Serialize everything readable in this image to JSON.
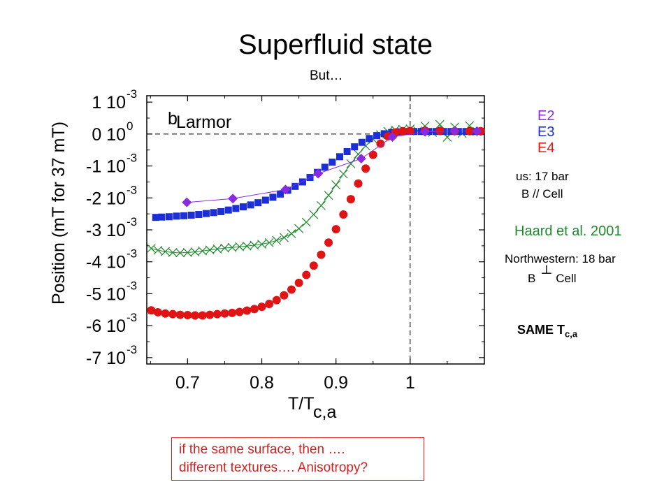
{
  "title": "Superfluid state",
  "subtitle": "But…",
  "chart_data": {
    "type": "scatter",
    "xlabel": "T/T",
    "xlabel_sub": "c,a",
    "ylabel": "Position (mT for 37 mT)",
    "xlim": [
      0.645,
      1.1
    ],
    "ylim": [
      -0.0072,
      0.0012
    ],
    "xticks": [
      {
        "v": 0.7,
        "label": "0.7"
      },
      {
        "v": 0.8,
        "label": "0.8"
      },
      {
        "v": 0.9,
        "label": "0.9"
      },
      {
        "v": 1.0,
        "label": "1"
      }
    ],
    "yticks": [
      {
        "v": 0.001,
        "base": "1 10",
        "exp": "-3"
      },
      {
        "v": 0.0,
        "base": "0 10",
        "exp": "0"
      },
      {
        "v": -0.001,
        "base": "-1 10",
        "exp": "-3"
      },
      {
        "v": -0.002,
        "base": "-2 10",
        "exp": "-3"
      },
      {
        "v": -0.003,
        "base": "-3 10",
        "exp": "-3"
      },
      {
        "v": -0.004,
        "base": "-4 10",
        "exp": "-3"
      },
      {
        "v": -0.005,
        "base": "-5 10",
        "exp": "-3"
      },
      {
        "v": -0.006,
        "base": "-6 10",
        "exp": "-3"
      },
      {
        "v": -0.007,
        "base": "-7 10",
        "exp": "-3"
      }
    ],
    "reference_lines": {
      "y": 0.0,
      "x": 1.0
    },
    "annotation": {
      "text": "b",
      "sub": "Larmor"
    },
    "series": [
      {
        "name": "E2",
        "marker": "diamond",
        "color": "#8a2be2",
        "with_line": true,
        "points": [
          [
            0.699,
            -0.00214
          ],
          [
            0.761,
            -0.00202
          ],
          [
            0.832,
            -0.00174
          ],
          [
            0.876,
            -0.00124
          ],
          [
            0.934,
            -0.00077
          ],
          [
            0.976,
            -9e-05
          ],
          [
            1.02,
            7e-05
          ],
          [
            1.06,
            0.0001
          ],
          [
            1.09,
            9e-05
          ]
        ]
      },
      {
        "name": "E3",
        "marker": "square",
        "color": "#1c2fd6",
        "points": [
          [
            0.657,
            -0.00261
          ],
          [
            0.665,
            -0.0026
          ],
          [
            0.675,
            -0.00259
          ],
          [
            0.685,
            -0.00257
          ],
          [
            0.695,
            -0.00256
          ],
          [
            0.705,
            -0.00254
          ],
          [
            0.715,
            -0.00252
          ],
          [
            0.725,
            -0.00249
          ],
          [
            0.735,
            -0.00246
          ],
          [
            0.745,
            -0.00243
          ],
          [
            0.755,
            -0.00238
          ],
          [
            0.765,
            -0.00233
          ],
          [
            0.775,
            -0.00228
          ],
          [
            0.785,
            -0.00222
          ],
          [
            0.795,
            -0.00215
          ],
          [
            0.805,
            -0.00207
          ],
          [
            0.815,
            -0.00198
          ],
          [
            0.825,
            -0.00188
          ],
          [
            0.835,
            -0.00176
          ],
          [
            0.845,
            -0.00164
          ],
          [
            0.855,
            -0.0015
          ],
          [
            0.865,
            -0.00136
          ],
          [
            0.875,
            -0.0012
          ],
          [
            0.885,
            -0.00104
          ],
          [
            0.895,
            -0.00088
          ],
          [
            0.905,
            -0.00071
          ],
          [
            0.915,
            -0.00055
          ],
          [
            0.925,
            -0.0004
          ],
          [
            0.935,
            -0.00026
          ],
          [
            0.945,
            -0.00014
          ],
          [
            0.955,
            -5e-05
          ],
          [
            0.965,
            1e-05
          ],
          [
            0.975,
            5e-05
          ],
          [
            0.985,
            7e-05
          ],
          [
            0.995,
            8e-05
          ],
          [
            1.005,
            8e-05
          ],
          [
            1.015,
            8e-05
          ],
          [
            1.025,
            8e-05
          ],
          [
            1.035,
            8e-05
          ],
          [
            1.045,
            8e-05
          ],
          [
            1.055,
            8e-05
          ],
          [
            1.065,
            8e-05
          ],
          [
            1.075,
            8e-05
          ],
          [
            1.085,
            8e-05
          ],
          [
            1.095,
            8e-05
          ]
        ]
      },
      {
        "name": "E4",
        "marker": "circle",
        "color": "#e01414",
        "points": [
          [
            0.651,
            -0.00552
          ],
          [
            0.66,
            -0.00558
          ],
          [
            0.67,
            -0.00562
          ],
          [
            0.68,
            -0.00564
          ],
          [
            0.69,
            -0.00566
          ],
          [
            0.7,
            -0.00567
          ],
          [
            0.71,
            -0.00568
          ],
          [
            0.72,
            -0.00568
          ],
          [
            0.73,
            -0.00566
          ],
          [
            0.74,
            -0.00564
          ],
          [
            0.75,
            -0.00562
          ],
          [
            0.76,
            -0.0056
          ],
          [
            0.77,
            -0.00557
          ],
          [
            0.78,
            -0.00553
          ],
          [
            0.79,
            -0.00548
          ],
          [
            0.8,
            -0.00541
          ],
          [
            0.81,
            -0.00532
          ],
          [
            0.82,
            -0.0052
          ],
          [
            0.83,
            -0.00505
          ],
          [
            0.84,
            -0.00487
          ],
          [
            0.85,
            -0.00466
          ],
          [
            0.86,
            -0.00441
          ],
          [
            0.87,
            -0.00412
          ],
          [
            0.88,
            -0.00378
          ],
          [
            0.89,
            -0.0034
          ],
          [
            0.9,
            -0.00298
          ],
          [
            0.91,
            -0.00252
          ],
          [
            0.92,
            -0.00204
          ],
          [
            0.93,
            -0.00155
          ],
          [
            0.94,
            -0.00108
          ],
          [
            0.95,
            -0.00065
          ],
          [
            0.96,
            -0.0003
          ],
          [
            0.97,
            -7e-05
          ],
          [
            0.98,
            5e-05
          ],
          [
            0.99,
            9e-05
          ],
          [
            1.0,
            0.0001
          ],
          [
            1.02,
            0.00011
          ],
          [
            1.04,
            0.0001
          ],
          [
            1.06,
            9e-05
          ],
          [
            1.08,
            9e-05
          ],
          [
            1.095,
            9e-05
          ]
        ]
      },
      {
        "name": "",
        "marker": "x",
        "color": "#1e8a2c",
        "with_line": true,
        "points": [
          [
            0.651,
            -0.00358
          ],
          [
            0.66,
            -0.00364
          ],
          [
            0.67,
            -0.00368
          ],
          [
            0.68,
            -0.00371
          ],
          [
            0.69,
            -0.00372
          ],
          [
            0.7,
            -0.00371
          ],
          [
            0.71,
            -0.00369
          ],
          [
            0.72,
            -0.00366
          ],
          [
            0.73,
            -0.00363
          ],
          [
            0.74,
            -0.0036
          ],
          [
            0.75,
            -0.00357
          ],
          [
            0.76,
            -0.00355
          ],
          [
            0.77,
            -0.00353
          ],
          [
            0.78,
            -0.00351
          ],
          [
            0.79,
            -0.00348
          ],
          [
            0.8,
            -0.00345
          ],
          [
            0.81,
            -0.0034
          ],
          [
            0.82,
            -0.00333
          ],
          [
            0.83,
            -0.00324
          ],
          [
            0.84,
            -0.00312
          ],
          [
            0.85,
            -0.00296
          ],
          [
            0.86,
            -0.00276
          ],
          [
            0.87,
            -0.00252
          ],
          [
            0.88,
            -0.00224
          ],
          [
            0.89,
            -0.00192
          ],
          [
            0.9,
            -0.00159
          ],
          [
            0.91,
            -0.00125
          ],
          [
            0.92,
            -0.00093
          ],
          [
            0.93,
            -0.00063
          ],
          [
            0.94,
            -0.00037
          ],
          [
            0.95,
            -0.00016
          ],
          [
            0.96,
            -2e-05
          ],
          [
            0.97,
            8e-05
          ],
          [
            0.98,
            0.00013
          ],
          [
            0.99,
            0.00015
          ],
          [
            1.0,
            0.00016
          ],
          [
            1.01,
            0.0001
          ],
          [
            1.02,
            0.00025
          ],
          [
            1.03,
            5e-05
          ],
          [
            1.04,
            0.0003
          ],
          [
            1.05,
            -0.0001
          ],
          [
            1.06,
            0.00022
          ],
          [
            1.07,
            2e-05
          ],
          [
            1.08,
            0.00026
          ],
          [
            1.09,
            8e-05
          ]
        ]
      }
    ]
  },
  "legend": {
    "e2": "E2",
    "e3": "E3",
    "e4": "E4",
    "e2_color": "#8a2be2",
    "e3_color": "#1c2fd6",
    "e4_color": "#e01414"
  },
  "notes": {
    "us_pressure": "us: 17 bar",
    "us_field": "B  // Cell",
    "haard": "Haard et al. 2001",
    "nw_pressure": "Northwestern: 18 bar",
    "nw_field_b": "B",
    "nw_field_perp": "┴",
    "nw_field_cell": "Cell",
    "same_tc": "SAME T",
    "same_tc_sub": "c,a"
  },
  "callout": {
    "line1": "if the same surface, then ….",
    "line2": "different textures…. Anisotropy?"
  }
}
